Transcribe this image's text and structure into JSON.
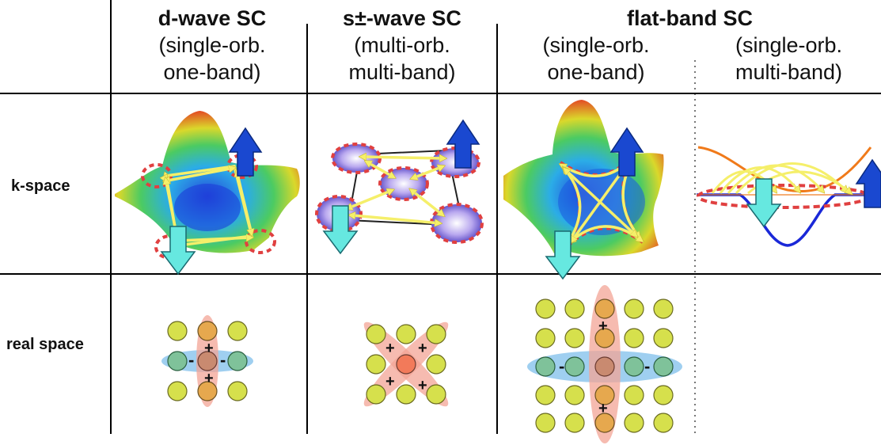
{
  "columns": [
    {
      "title": "d-wave SC",
      "line1": "(single-orb.",
      "line2": "one-band)"
    },
    {
      "title": "s±-wave SC",
      "line1": "(multi-orb.",
      "line2": "multi-band)"
    },
    {
      "title": "flat-band SC"
    },
    {
      "line1": "(single-orb.",
      "line2": "one-band)"
    },
    {
      "line1": "(single-orb.",
      "line2": "multi-band)"
    }
  ],
  "rows": {
    "k_space": "k-space",
    "real_space": "real space"
  },
  "signs": {
    "plus": "+",
    "minus": "-"
  }
}
